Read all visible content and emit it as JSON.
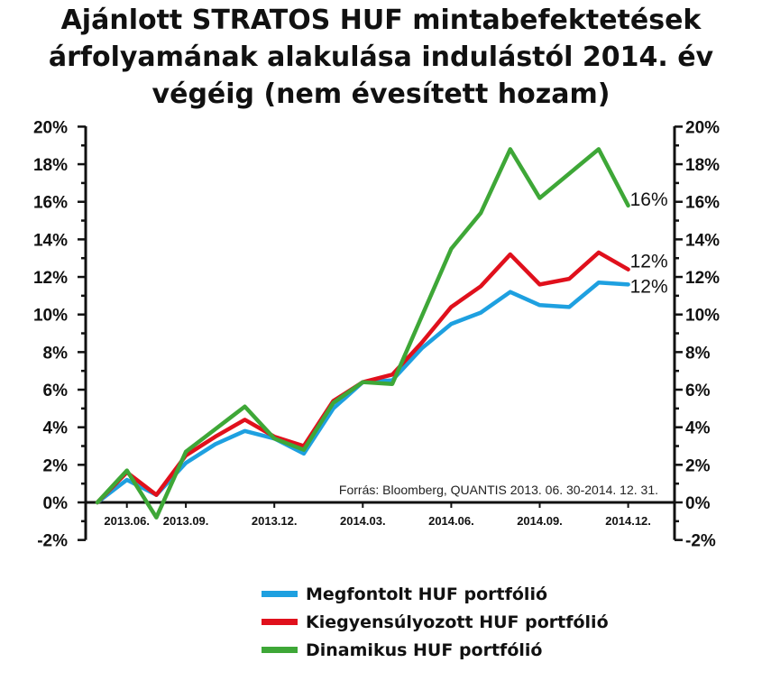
{
  "chart_data": {
    "type": "line",
    "title_lines": [
      "Ajánlott STRATOS HUF mintabefektetések",
      "árfolyamának alakulása indulástól 2014. év",
      "végéig (nem évesített hozam)"
    ],
    "source_note": "Forrás: Bloomberg, QUANTIS  2013. 06. 30-2014. 12. 31.",
    "x": [
      0,
      1,
      2,
      3,
      4,
      5,
      6,
      7,
      8,
      9,
      10,
      11,
      12,
      13,
      14,
      15,
      16,
      17,
      18
    ],
    "x_tick_labels": [
      {
        "at": 1,
        "label": "2013.06."
      },
      {
        "at": 3,
        "label": "2013.09."
      },
      {
        "at": 6,
        "label": "2013.12."
      },
      {
        "at": 9,
        "label": "2014.03."
      },
      {
        "at": 12,
        "label": "2014.06."
      },
      {
        "at": 15,
        "label": "2014.09."
      },
      {
        "at": 18,
        "label": "2014.12."
      }
    ],
    "y_ticks": [
      "20%",
      "18%",
      "16%",
      "14%",
      "12%",
      "10%",
      "8%",
      "6%",
      "4%",
      "2%",
      "0%",
      "-2%"
    ],
    "ylim": [
      -2,
      20
    ],
    "y_unit": "%",
    "grid": false,
    "series": [
      {
        "name": "Megfontolt HUF portfólió",
        "color": "#1ea0e0",
        "values": [
          0,
          1.2,
          0.4,
          2.1,
          3.1,
          3.8,
          3.4,
          2.6,
          5.0,
          6.4,
          6.5,
          8.2,
          9.5,
          10.1,
          11.2,
          10.5,
          10.4,
          11.7,
          11.6
        ],
        "end_label": "12%"
      },
      {
        "name": "Kiegyensúlyozott HUF portfólió",
        "color": "#e0101c",
        "values": [
          0,
          1.6,
          0.4,
          2.5,
          3.5,
          4.4,
          3.5,
          3.0,
          5.4,
          6.4,
          6.8,
          8.5,
          10.4,
          11.5,
          13.2,
          11.6,
          11.9,
          13.3,
          12.4
        ],
        "end_label": "12%"
      },
      {
        "name": "Dinamikus HUF portfólió",
        "color": "#3ea737",
        "values": [
          0,
          1.7,
          -0.8,
          2.7,
          3.9,
          5.1,
          3.4,
          2.8,
          5.3,
          6.4,
          6.3,
          9.9,
          13.5,
          15.4,
          18.8,
          16.2,
          17.5,
          18.8,
          15.8
        ],
        "end_label": "16%"
      }
    ],
    "legend_position": "bottom-center"
  }
}
